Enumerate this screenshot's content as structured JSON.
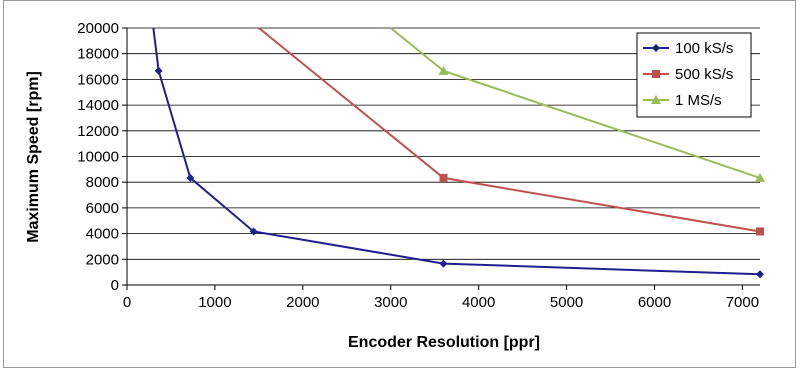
{
  "chart_data": {
    "type": "line",
    "xlabel": "Encoder Resolution [ppr]",
    "ylabel": "Maximum Speed [rpm]",
    "xlim": [
      0,
      7200
    ],
    "ylim": [
      0,
      20000
    ],
    "xticks": [
      0,
      1000,
      2000,
      3000,
      4000,
      5000,
      6000,
      7000
    ],
    "yticks": [
      0,
      2000,
      4000,
      6000,
      8000,
      10000,
      12000,
      14000,
      16000,
      18000,
      20000
    ],
    "grid": "horizontal",
    "legend_position": "top-right",
    "series": [
      {
        "name": "100 kS/s",
        "color": "#1f1f8f",
        "marker": "diamond",
        "points": [
          [
            300,
            20000
          ],
          [
            360,
            16667
          ],
          [
            720,
            8333
          ],
          [
            1440,
            4167
          ],
          [
            3600,
            1667
          ],
          [
            7200,
            833
          ]
        ]
      },
      {
        "name": "500 kS/s",
        "color": "#c0504d",
        "marker": "square",
        "points": [
          [
            1500,
            20000
          ],
          [
            3600,
            8333
          ],
          [
            7200,
            4167
          ]
        ]
      },
      {
        "name": "1 MS/s",
        "color": "#9bbb59",
        "marker": "triangle",
        "points": [
          [
            3000,
            20000
          ],
          [
            3600,
            16667
          ],
          [
            7200,
            8333
          ]
        ]
      }
    ]
  }
}
